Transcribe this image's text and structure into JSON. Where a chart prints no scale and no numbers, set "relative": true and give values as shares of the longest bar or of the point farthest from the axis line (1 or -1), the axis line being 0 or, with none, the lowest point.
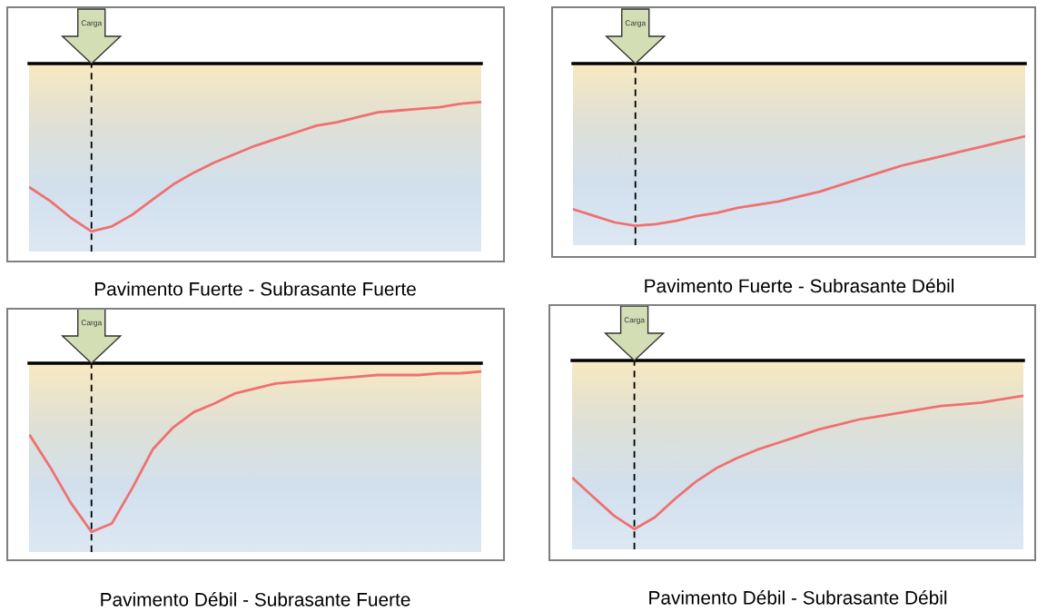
{
  "chart_data": [
    {
      "type": "line",
      "title": "Pavimento Fuerte - Subrasante Fuerte",
      "relative": true,
      "categories": [
        null,
        null,
        null,
        null,
        null,
        null,
        null,
        null,
        null,
        null,
        null,
        null,
        null,
        null,
        null,
        null,
        null,
        null,
        null,
        null,
        null,
        null,
        null
      ],
      "series": [
        {
          "color": "#f07070",
          "values": [
            -0.74,
            -0.82,
            -0.92,
            -1,
            -0.97,
            -0.9,
            -0.81,
            -0.72,
            -0.65,
            -0.59,
            -0.54,
            -0.49,
            -0.45,
            -0.41,
            -0.37,
            -0.35,
            -0.32,
            -0.29,
            -0.28,
            -0.27,
            -0.26,
            -0.24,
            -0.23
          ]
        }
      ],
      "annotations": [
        "Carga"
      ]
    },
    {
      "type": "line",
      "title": "Pavimento Fuerte - Subrasante Débil",
      "relative": true,
      "categories": [
        null,
        null,
        null,
        null,
        null,
        null,
        null,
        null,
        null,
        null,
        null,
        null,
        null,
        null,
        null,
        null,
        null,
        null,
        null,
        null,
        null,
        null,
        null
      ],
      "series": [
        {
          "color": "#f07070",
          "values": [
            -0.9,
            -0.94,
            -0.98,
            -1,
            -0.99,
            -0.97,
            -0.94,
            -0.92,
            -0.89,
            -0.87,
            -0.85,
            -0.82,
            -0.79,
            -0.75,
            -0.71,
            -0.67,
            -0.63,
            -0.6,
            -0.57,
            -0.54,
            -0.51,
            -0.48,
            -0.45
          ]
        }
      ],
      "annotations": [
        "Carga"
      ]
    },
    {
      "type": "line",
      "title": "Pavimento Débil - Subrasante Fuerte",
      "relative": true,
      "categories": [
        null,
        null,
        null,
        null,
        null,
        null,
        null,
        null,
        null,
        null,
        null,
        null,
        null,
        null,
        null,
        null,
        null,
        null,
        null,
        null,
        null,
        null,
        null
      ],
      "series": [
        {
          "color": "#f07070",
          "values": [
            -0.43,
            -0.62,
            -0.83,
            -1,
            -0.95,
            -0.74,
            -0.51,
            -0.38,
            -0.29,
            -0.24,
            -0.18,
            -0.15,
            -0.12,
            -0.11,
            -0.1,
            -0.09,
            -0.08,
            -0.07,
            -0.07,
            -0.07,
            -0.06,
            -0.06,
            -0.05
          ]
        }
      ],
      "annotations": [
        "Carga"
      ]
    },
    {
      "type": "line",
      "title": "Pavimento Débil - Subrasante Débil",
      "relative": true,
      "categories": [
        null,
        null,
        null,
        null,
        null,
        null,
        null,
        null,
        null,
        null,
        null,
        null,
        null,
        null,
        null,
        null,
        null,
        null,
        null,
        null,
        null,
        null,
        null
      ],
      "series": [
        {
          "color": "#f07070",
          "values": [
            -0.7,
            -0.81,
            -0.92,
            -1,
            -0.93,
            -0.82,
            -0.72,
            -0.64,
            -0.58,
            -0.53,
            -0.49,
            -0.45,
            -0.41,
            -0.38,
            -0.35,
            -0.33,
            -0.31,
            -0.29,
            -0.27,
            -0.26,
            -0.25,
            -0.23,
            -0.21
          ]
        }
      ],
      "annotations": [
        "Carga"
      ]
    }
  ]
}
